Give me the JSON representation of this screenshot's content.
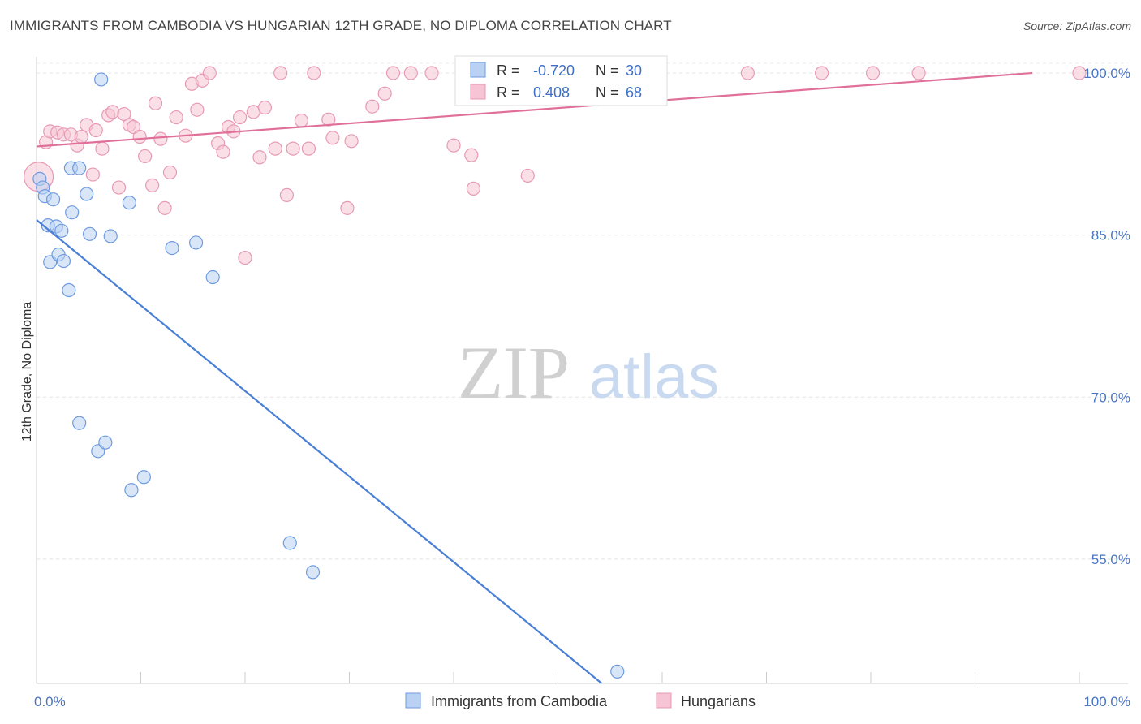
{
  "title": "IMMIGRANTS FROM CAMBODIA VS HUNGARIAN 12TH GRADE, NO DIPLOMA CORRELATION CHART",
  "source": "Source: ZipAtlas.com",
  "watermark": {
    "zip": "ZIP",
    "atlas": "atlas"
  },
  "colors": {
    "blue": "#4a7fd6",
    "blue_fill": "#b9d2f3",
    "pink": "#e07099",
    "pink_fill": "#f6c4d4",
    "tick": "#4a74c4"
  },
  "chart_data": {
    "type": "scatter",
    "xlabel": "",
    "ylabel": "12th Grade, No Diploma",
    "xlim": [
      0,
      100
    ],
    "ylim": [
      43.5,
      101.5
    ],
    "x_tick_labels": [
      {
        "value": 0,
        "label": "0.0%"
      },
      {
        "value": 100,
        "label": "100.0%"
      }
    ],
    "y_ticks": [
      {
        "value": 100,
        "label": "100.0%"
      },
      {
        "value": 85,
        "label": "85.0%"
      },
      {
        "value": 70,
        "label": "70.0%"
      },
      {
        "value": 55,
        "label": "55.0%"
      }
    ],
    "grid": true,
    "legend_position": "top-center",
    "stats": [
      {
        "r_label": "R = ",
        "r_value": "-0.720",
        "n_label": "N = ",
        "n_value": "30"
      },
      {
        "r_label": "R = ",
        "r_value": "0.408",
        "n_label": "N = ",
        "n_value": "68"
      }
    ],
    "series": [
      {
        "name": "Immigrants from Cambodia",
        "color": "#4a7fd6",
        "trend": {
          "x": [
            0,
            54.2
          ],
          "y": [
            86.4,
            43.5
          ]
        },
        "points": [
          {
            "x": 0.3,
            "y": 90.2
          },
          {
            "x": 0.6,
            "y": 89.4
          },
          {
            "x": 0.8,
            "y": 88.6
          },
          {
            "x": 1.6,
            "y": 88.3
          },
          {
            "x": 1.1,
            "y": 85.9
          },
          {
            "x": 1.9,
            "y": 85.8
          },
          {
            "x": 2.4,
            "y": 85.4
          },
          {
            "x": 1.3,
            "y": 82.5
          },
          {
            "x": 2.1,
            "y": 83.2
          },
          {
            "x": 2.6,
            "y": 82.6
          },
          {
            "x": 3.1,
            "y": 79.9
          },
          {
            "x": 3.4,
            "y": 87.1
          },
          {
            "x": 3.3,
            "y": 91.2
          },
          {
            "x": 4.1,
            "y": 91.2
          },
          {
            "x": 4.8,
            "y": 88.8
          },
          {
            "x": 5.1,
            "y": 85.1
          },
          {
            "x": 7.1,
            "y": 84.9
          },
          {
            "x": 6.2,
            "y": 99.4
          },
          {
            "x": 8.9,
            "y": 88.0
          },
          {
            "x": 13.0,
            "y": 83.8
          },
          {
            "x": 15.3,
            "y": 84.3
          },
          {
            "x": 16.9,
            "y": 81.1
          },
          {
            "x": 4.1,
            "y": 67.6
          },
          {
            "x": 5.9,
            "y": 65.0
          },
          {
            "x": 6.6,
            "y": 65.8
          },
          {
            "x": 9.1,
            "y": 61.4
          },
          {
            "x": 10.3,
            "y": 62.6
          },
          {
            "x": 24.3,
            "y": 56.5
          },
          {
            "x": 26.5,
            "y": 53.8
          },
          {
            "x": 55.7,
            "y": 44.6
          }
        ]
      },
      {
        "name": "Hungarians",
        "color": "#e07099",
        "trend": {
          "x": [
            0,
            95.5
          ],
          "y": [
            93.2,
            100.0
          ]
        },
        "points": [
          {
            "x": 0.2,
            "y": 90.4
          },
          {
            "x": 0.9,
            "y": 93.6
          },
          {
            "x": 1.3,
            "y": 94.6
          },
          {
            "x": 2.0,
            "y": 94.5
          },
          {
            "x": 2.6,
            "y": 94.3
          },
          {
            "x": 3.3,
            "y": 94.3
          },
          {
            "x": 3.9,
            "y": 93.3
          },
          {
            "x": 4.3,
            "y": 94.1
          },
          {
            "x": 4.8,
            "y": 95.2
          },
          {
            "x": 5.4,
            "y": 90.6
          },
          {
            "x": 5.7,
            "y": 94.7
          },
          {
            "x": 6.3,
            "y": 93.0
          },
          {
            "x": 6.9,
            "y": 96.1
          },
          {
            "x": 7.3,
            "y": 96.4
          },
          {
            "x": 7.9,
            "y": 89.4
          },
          {
            "x": 8.4,
            "y": 96.2
          },
          {
            "x": 8.9,
            "y": 95.2
          },
          {
            "x": 9.3,
            "y": 95.0
          },
          {
            "x": 9.9,
            "y": 94.1
          },
          {
            "x": 10.4,
            "y": 92.3
          },
          {
            "x": 11.1,
            "y": 89.6
          },
          {
            "x": 11.4,
            "y": 97.2
          },
          {
            "x": 11.9,
            "y": 93.9
          },
          {
            "x": 12.3,
            "y": 87.5
          },
          {
            "x": 12.8,
            "y": 90.8
          },
          {
            "x": 13.4,
            "y": 95.9
          },
          {
            "x": 14.3,
            "y": 94.2
          },
          {
            "x": 14.9,
            "y": 99.0
          },
          {
            "x": 15.4,
            "y": 96.6
          },
          {
            "x": 15.9,
            "y": 99.3
          },
          {
            "x": 16.6,
            "y": 100.0
          },
          {
            "x": 17.4,
            "y": 93.5
          },
          {
            "x": 17.9,
            "y": 92.7
          },
          {
            "x": 18.4,
            "y": 95.0
          },
          {
            "x": 18.9,
            "y": 94.6
          },
          {
            "x": 19.5,
            "y": 95.9
          },
          {
            "x": 20.0,
            "y": 82.9
          },
          {
            "x": 20.8,
            "y": 96.4
          },
          {
            "x": 21.4,
            "y": 92.2
          },
          {
            "x": 21.9,
            "y": 96.8
          },
          {
            "x": 22.9,
            "y": 93.0
          },
          {
            "x": 23.4,
            "y": 100.0
          },
          {
            "x": 24.0,
            "y": 88.7
          },
          {
            "x": 24.6,
            "y": 93.0
          },
          {
            "x": 25.4,
            "y": 95.6
          },
          {
            "x": 26.1,
            "y": 93.0
          },
          {
            "x": 26.6,
            "y": 100.0
          },
          {
            "x": 28.0,
            "y": 95.7
          },
          {
            "x": 28.4,
            "y": 94.0
          },
          {
            "x": 29.8,
            "y": 87.5
          },
          {
            "x": 30.2,
            "y": 93.7
          },
          {
            "x": 32.2,
            "y": 96.9
          },
          {
            "x": 33.4,
            "y": 98.1
          },
          {
            "x": 34.2,
            "y": 100.0
          },
          {
            "x": 35.9,
            "y": 100.0
          },
          {
            "x": 37.9,
            "y": 100.0
          },
          {
            "x": 40.0,
            "y": 93.3
          },
          {
            "x": 41.2,
            "y": 100.0
          },
          {
            "x": 41.7,
            "y": 92.4
          },
          {
            "x": 41.9,
            "y": 89.3
          },
          {
            "x": 47.1,
            "y": 90.5
          },
          {
            "x": 54.1,
            "y": 100.0
          },
          {
            "x": 57.2,
            "y": 100.0
          },
          {
            "x": 68.2,
            "y": 100.0
          },
          {
            "x": 75.3,
            "y": 100.0
          },
          {
            "x": 80.2,
            "y": 100.0
          },
          {
            "x": 84.6,
            "y": 100.0
          },
          {
            "x": 100.0,
            "y": 100.0
          }
        ]
      }
    ]
  }
}
